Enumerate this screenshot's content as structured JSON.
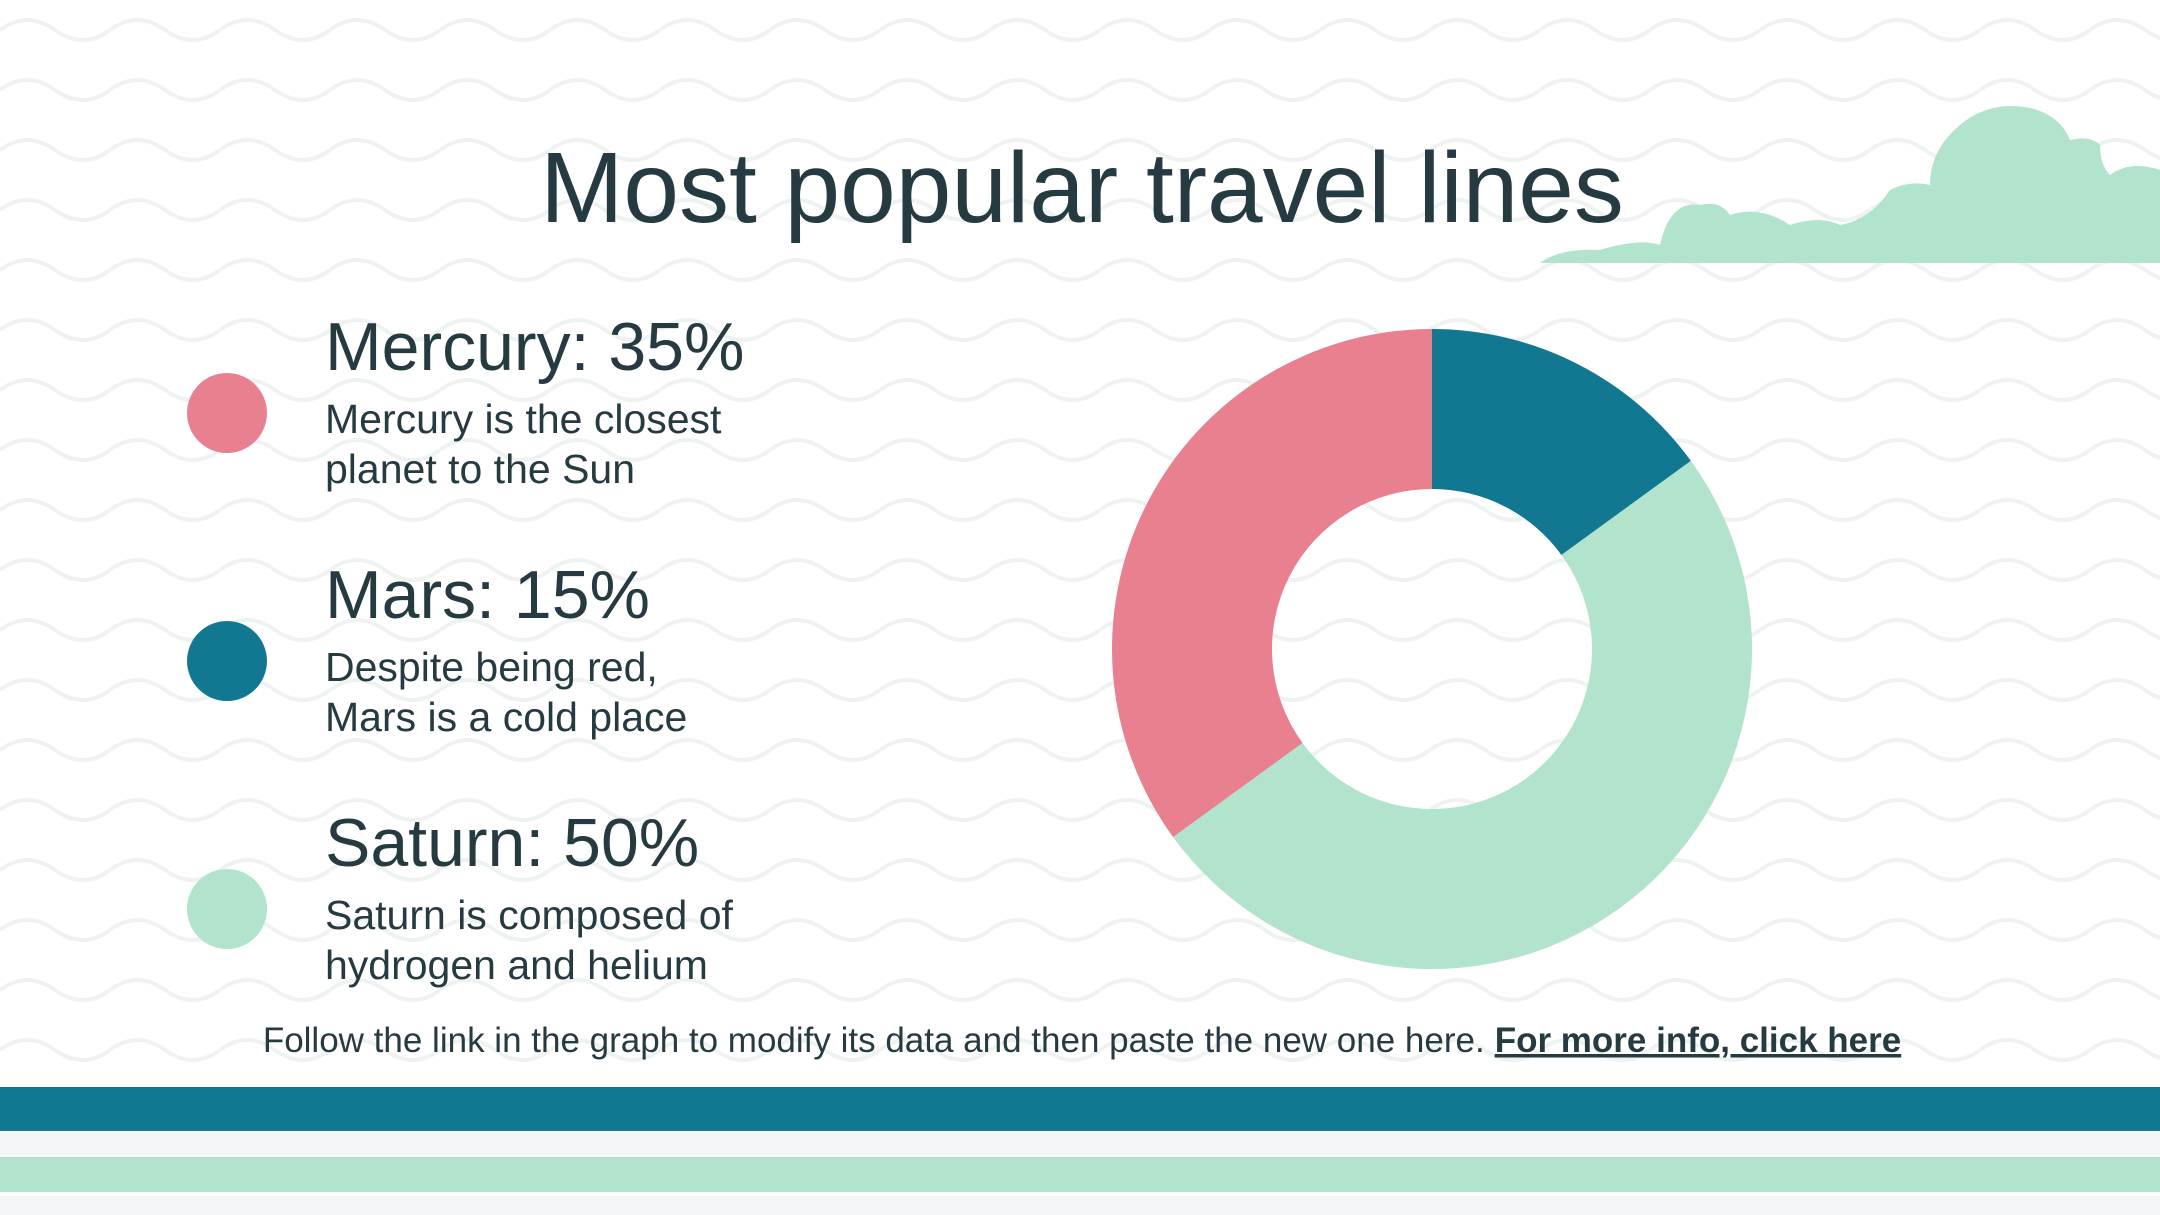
{
  "chart_data": {
    "type": "donut",
    "title": "Most popular travel lines",
    "value_labels": [
      "Mercury: 35%",
      "Mars: 15%",
      "Saturn: 50%"
    ],
    "values": [
      35,
      15,
      50
    ],
    "colors": [
      "#e8808f",
      "#127891",
      "#b2e3cc"
    ],
    "descriptions": [
      [
        "Mercury is the closest",
        "planet to the Sun"
      ],
      [
        "Despite being red,",
        "Mars is a cold place"
      ],
      [
        "Saturn is composed of",
        "hydrogen and helium"
      ]
    ]
  },
  "footer": {
    "text": "Follow the link in the graph to modify its data and then paste the new one here.",
    "link": "For more info, click here"
  }
}
